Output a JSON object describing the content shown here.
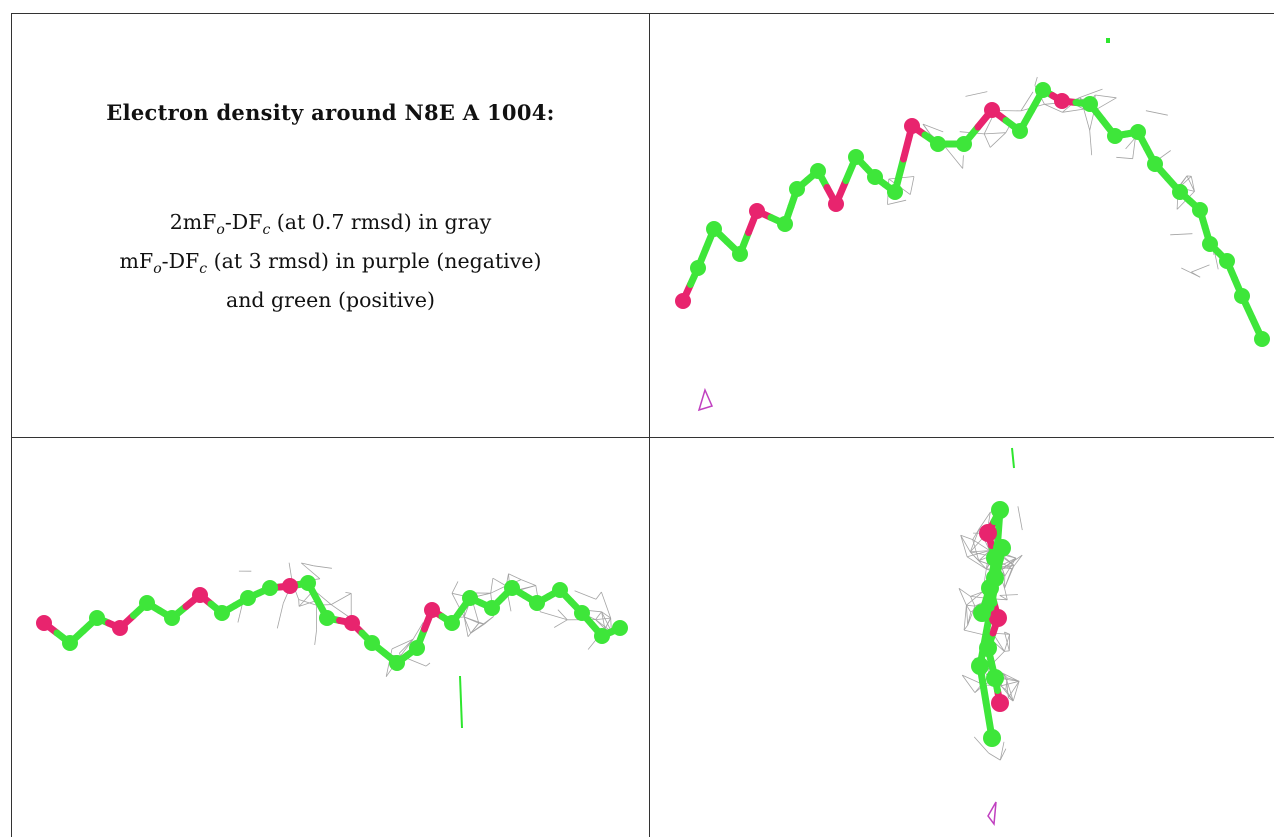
{
  "caption": {
    "title": "Electron density around N8E A 1004:",
    "line1": {
      "prefix": "2mF",
      "sub1": "o",
      "mid": "-DF",
      "sub2": "c",
      "suffix": " (at 0.7 rmsd) in gray"
    },
    "line2": {
      "prefix": "mF",
      "sub1": "o",
      "mid": "-DF",
      "sub2": "c",
      "suffix": " (at 3 rmsd) in purple (negative)"
    },
    "line3": "and green (positive)"
  },
  "colors": {
    "carbon": "#3ee63a",
    "oxygen": "#e8246e",
    "mesh_2fofc": "#9a9a9a",
    "positive_diff": "#2ee62e",
    "negative_diff": "#c040c0",
    "border": "#333333"
  },
  "views": [
    {
      "name": "view-top-right"
    },
    {
      "name": "view-bottom-left"
    },
    {
      "name": "view-bottom-right"
    }
  ]
}
